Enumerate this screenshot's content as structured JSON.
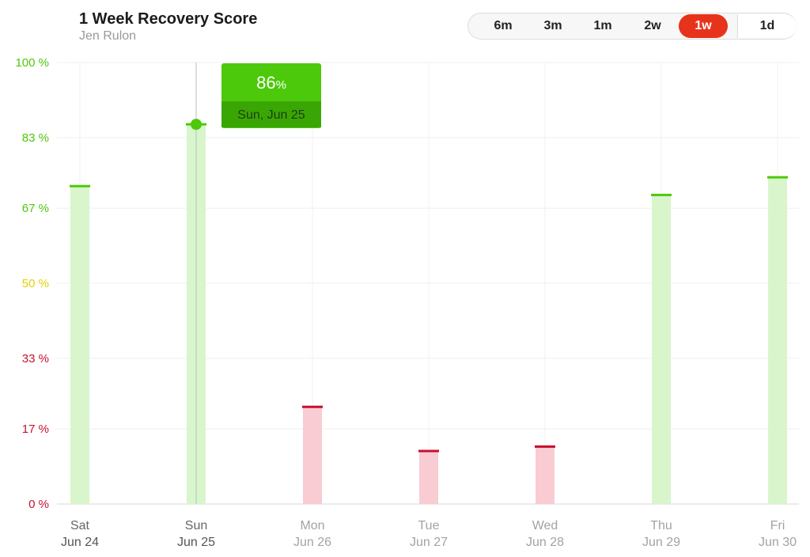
{
  "header": {
    "title": "1 Week Recovery Score",
    "subtitle": "Jen Rulon"
  },
  "range_selector": {
    "options": [
      "6m",
      "3m",
      "1m",
      "2w",
      "1w",
      "1d"
    ],
    "selected": "1w"
  },
  "colors": {
    "green": "#4ec80a",
    "green_fill": "#d8f5cc",
    "red": "#c8102e",
    "red_fill": "#f8ccd2",
    "yellow": "#e3d20c",
    "tooltip_top": "#4cc90a",
    "tooltip_bottom": "#3aa605",
    "active_range": "#e8331c"
  },
  "tooltip": {
    "value": "86",
    "unit": "%",
    "date": "Sun, Jun 25"
  },
  "chart_data": {
    "type": "bar",
    "title": "1 Week Recovery Score",
    "categories": [
      {
        "day": "Sat",
        "date": "Jun 24"
      },
      {
        "day": "Sun",
        "date": "Jun 25"
      },
      {
        "day": "Mon",
        "date": "Jun 26"
      },
      {
        "day": "Tue",
        "date": "Jun 27"
      },
      {
        "day": "Wed",
        "date": "Jun 28"
      },
      {
        "day": "Thu",
        "date": "Jun 29"
      },
      {
        "day": "Fri",
        "date": "Jun 30"
      }
    ],
    "values": [
      72,
      86,
      22,
      12,
      13,
      70,
      74
    ],
    "unit": "%",
    "ylim": [
      0,
      100
    ],
    "yticks": [
      {
        "value": 100,
        "label": "100 %",
        "zone": "green"
      },
      {
        "value": 83,
        "label": "83 %",
        "zone": "green"
      },
      {
        "value": 67,
        "label": "67 %",
        "zone": "green"
      },
      {
        "value": 50,
        "label": "50 %",
        "zone": "yellow"
      },
      {
        "value": 33,
        "label": "33 %",
        "zone": "red"
      },
      {
        "value": 17,
        "label": "17 %",
        "zone": "red"
      },
      {
        "value": 0,
        "label": "0 %",
        "zone": "red"
      }
    ],
    "zones": {
      "red_below": 34,
      "yellow_below": 67
    },
    "grid": true,
    "highlighted_index": 1
  }
}
